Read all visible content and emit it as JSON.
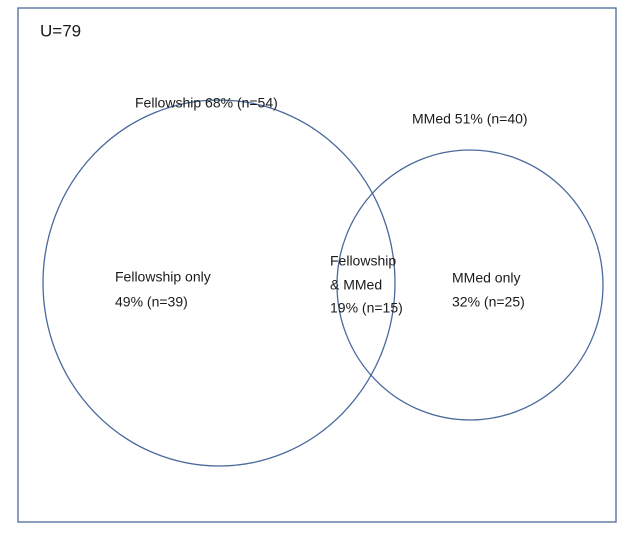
{
  "universe": {
    "label": "U=79"
  },
  "sets": [
    {
      "label": "Fellowship 68% (n=54)"
    },
    {
      "label": "MMed 51% (n=40)"
    }
  ],
  "regions": [
    {
      "lines": [
        "Fellowship only",
        "49% (n=39)"
      ]
    },
    {
      "lines": [
        "Fellowship",
        "& MMed",
        "19% (n=15)"
      ]
    },
    {
      "lines": [
        "MMed only",
        "32% (n=25)"
      ]
    }
  ]
}
